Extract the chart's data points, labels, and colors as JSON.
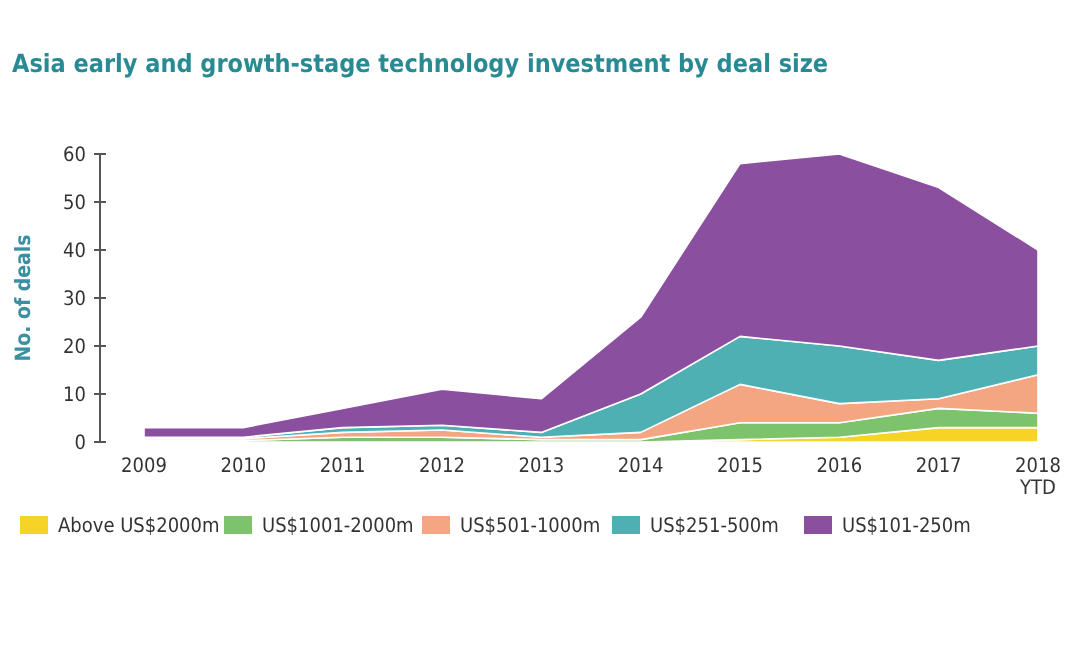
{
  "chart_data": {
    "type": "area",
    "title": "Asia early and growth-stage technology investment by deal size",
    "ylabel": "No. of deals",
    "categories": [
      "2009",
      "2010",
      "2011",
      "2012",
      "2013",
      "2014",
      "2015",
      "2016",
      "2017",
      "2018 YTD"
    ],
    "stacked": true,
    "ylim": [
      0,
      60
    ],
    "yticks": [
      0,
      10,
      20,
      30,
      40,
      50,
      60
    ],
    "grid": false,
    "legend": "bottom",
    "series": [
      {
        "name": "Above US$2000m",
        "color": "#f5d327",
        "values": [
          0,
          0,
          0,
          0,
          0,
          0,
          0.5,
          1,
          3,
          3
        ]
      },
      {
        "name": "US$1001-2000m",
        "color": "#7dc36b",
        "values": [
          0.3,
          0.3,
          1,
          1,
          0.5,
          0.5,
          3.5,
          3,
          4,
          3
        ]
      },
      {
        "name": "US$501-1000m",
        "color": "#f4a582",
        "values": [
          0.4,
          0.4,
          1,
          1.5,
          0.5,
          1.5,
          8,
          4,
          2,
          8
        ]
      },
      {
        "name": "US$251-500m",
        "color": "#4fb0b4",
        "values": [
          0.3,
          0.3,
          1,
          1,
          1,
          8,
          10,
          12,
          8,
          6
        ]
      },
      {
        "name": "US$101-250m",
        "color": "#8b4f9f",
        "values": [
          2,
          2,
          4,
          7.5,
          7,
          16,
          36,
          40,
          36,
          20
        ]
      }
    ]
  }
}
